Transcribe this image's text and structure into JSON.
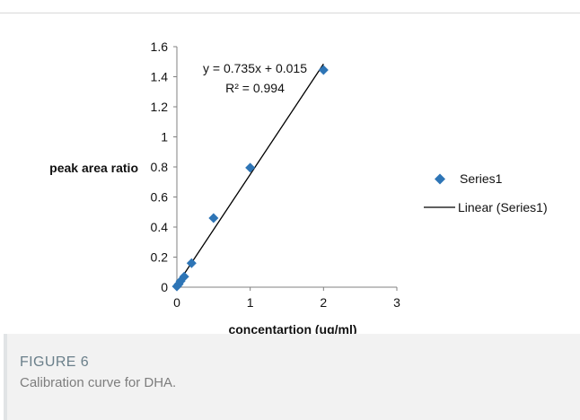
{
  "chart_data": {
    "type": "scatter",
    "title": "",
    "xlabel": "concentartion (ug/ml)",
    "ylabel": "peak area ratio",
    "xlim": [
      0,
      3
    ],
    "ylim": [
      0,
      1.6
    ],
    "xticks": [
      "0",
      "1",
      "2",
      "3"
    ],
    "yticks": [
      "0",
      "0.2",
      "0.4",
      "0.6",
      "0.8",
      "1",
      "1.2",
      "1.4",
      "1.6"
    ],
    "series": [
      {
        "name": "Series1",
        "marker": "diamond",
        "color": "#2e75b6",
        "x": [
          0,
          0.025,
          0.05,
          0.1,
          0.2,
          0.5,
          1,
          2
        ],
        "y": [
          0.005,
          0.02,
          0.04,
          0.07,
          0.16,
          0.46,
          0.795,
          1.445
        ]
      }
    ],
    "trendline": {
      "name": "Linear (Series1)",
      "type": "linear",
      "slope": 0.735,
      "intercept": 0.015,
      "x_range": [
        0,
        2
      ],
      "color": "#000000",
      "equation": "y = 0.735x + 0.015",
      "r_squared": "R² = 0.994"
    },
    "legend_position": "right",
    "grid": false
  },
  "caption": {
    "label": "FIGURE 6",
    "text": "Calibration curve for DHA."
  }
}
